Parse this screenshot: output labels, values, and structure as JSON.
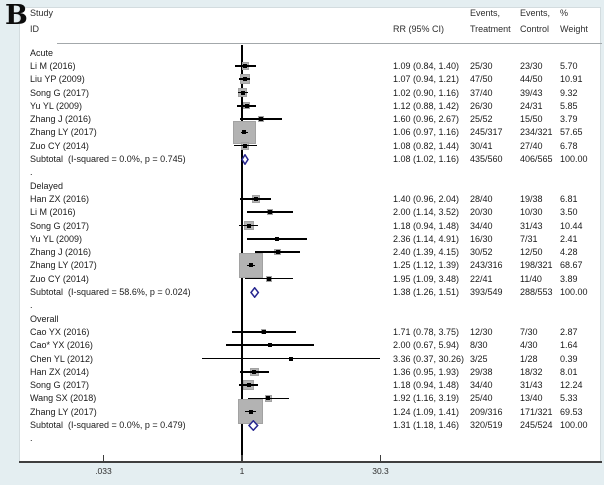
{
  "panel_label": "B",
  "header": {
    "study": "Study",
    "id": "ID",
    "rr": "RR (95% CI)",
    "events_treatment_line1": "Events,",
    "events_treatment_line2": "Treatment",
    "events_control_line1": "Events,",
    "events_control_line2": "Control",
    "weight_line1": "%",
    "weight_line2": "Weight"
  },
  "colors": {
    "background": "#e4eef1",
    "panel": "#ffffff",
    "weight_box": "#b3b3b3",
    "diamond_stroke": "#26268f",
    "marker": "#000000",
    "axis": "#3f3f3f"
  },
  "axis": {
    "scale": "log",
    "tick_labels": [
      ".033",
      "1",
      "30.3"
    ],
    "tick_values": [
      0.033,
      1,
      30.3
    ],
    "null_line_value": 1
  },
  "chart_data": {
    "type": "forest_plot",
    "effect_measure": "RR",
    "xlim": [
      0.033,
      30.3
    ],
    "groups": [
      {
        "name": "Acute",
        "studies": [
          {
            "id": "Li M (2016)",
            "rr": 1.09,
            "lo": 0.84,
            "hi": 1.4,
            "rr_text": "1.09 (0.84, 1.40)",
            "treatment": "25/30",
            "control": "23/30",
            "weight": 5.7,
            "weight_text": "5.70"
          },
          {
            "id": "Liu YP (2009)",
            "rr": 1.07,
            "lo": 0.94,
            "hi": 1.21,
            "rr_text": "1.07 (0.94, 1.21)",
            "treatment": "47/50",
            "control": "44/50",
            "weight": 10.91,
            "weight_text": "10.91"
          },
          {
            "id": "Song G (2017)",
            "rr": 1.02,
            "lo": 0.9,
            "hi": 1.16,
            "rr_text": "1.02 (0.90, 1.16)",
            "treatment": "37/40",
            "control": "39/43",
            "weight": 9.32,
            "weight_text": "9.32"
          },
          {
            "id": "Yu YL (2009)",
            "rr": 1.12,
            "lo": 0.88,
            "hi": 1.42,
            "rr_text": "1.12 (0.88, 1.42)",
            "treatment": "26/30",
            "control": "24/31",
            "weight": 5.85,
            "weight_text": "5.85"
          },
          {
            "id": "Zhang J (2016)",
            "rr": 1.6,
            "lo": 0.96,
            "hi": 2.67,
            "rr_text": "1.60 (0.96, 2.67)",
            "treatment": "25/52",
            "control": "15/50",
            "weight": 3.79,
            "weight_text": "3.79"
          },
          {
            "id": "Zhang LY (2017)",
            "rr": 1.06,
            "lo": 0.97,
            "hi": 1.16,
            "rr_text": "1.06 (0.97, 1.16)",
            "treatment": "245/317",
            "control": "234/321",
            "weight": 57.65,
            "weight_text": "57.65"
          },
          {
            "id": "Zuo CY (2014)",
            "rr": 1.08,
            "lo": 0.82,
            "hi": 1.44,
            "rr_text": "1.08 (0.82, 1.44)",
            "treatment": "30/41",
            "control": "27/40",
            "weight": 6.78,
            "weight_text": "6.78"
          }
        ],
        "subtotal": {
          "label": "Subtotal  (I-squared = 0.0%, p = 0.745)",
          "rr": 1.08,
          "lo": 1.02,
          "hi": 1.16,
          "rr_text": "1.08 (1.02, 1.16)",
          "treatment": "435/560",
          "control": "406/565",
          "weight_text": "100.00"
        }
      },
      {
        "name": "Delayed",
        "studies": [
          {
            "id": "Han ZX (2016)",
            "rr": 1.4,
            "lo": 0.96,
            "hi": 2.04,
            "rr_text": "1.40 (0.96, 2.04)",
            "treatment": "28/40",
            "control": "19/38",
            "weight": 6.81,
            "weight_text": "6.81"
          },
          {
            "id": "Li M (2016)",
            "rr": 2.0,
            "lo": 1.14,
            "hi": 3.52,
            "rr_text": "2.00 (1.14, 3.52)",
            "treatment": "20/30",
            "control": "10/30",
            "weight": 3.5,
            "weight_text": "3.50"
          },
          {
            "id": "Song G (2017)",
            "rr": 1.18,
            "lo": 0.94,
            "hi": 1.48,
            "rr_text": "1.18 (0.94, 1.48)",
            "treatment": "34/40",
            "control": "31/43",
            "weight": 10.44,
            "weight_text": "10.44"
          },
          {
            "id": "Yu YL (2009)",
            "rr": 2.36,
            "lo": 1.14,
            "hi": 4.91,
            "rr_text": "2.36 (1.14, 4.91)",
            "treatment": "16/30",
            "control": "7/31",
            "weight": 2.41,
            "weight_text": "2.41"
          },
          {
            "id": "Zhang J (2016)",
            "rr": 2.4,
            "lo": 1.39,
            "hi": 4.15,
            "rr_text": "2.40 (1.39, 4.15)",
            "treatment": "30/52",
            "control": "12/50",
            "weight": 4.28,
            "weight_text": "4.28"
          },
          {
            "id": "Zhang LY (2017)",
            "rr": 1.25,
            "lo": 1.12,
            "hi": 1.39,
            "rr_text": "1.25 (1.12, 1.39)",
            "treatment": "243/316",
            "control": "198/321",
            "weight": 68.67,
            "weight_text": "68.67"
          },
          {
            "id": "Zuo CY (2014)",
            "rr": 1.95,
            "lo": 1.09,
            "hi": 3.48,
            "rr_text": "1.95 (1.09, 3.48)",
            "treatment": "22/41",
            "control": "11/40",
            "weight": 3.89,
            "weight_text": "3.89"
          }
        ],
        "subtotal": {
          "label": "Subtotal  (I-squared = 58.6%, p = 0.024)",
          "rr": 1.38,
          "lo": 1.26,
          "hi": 1.51,
          "rr_text": "1.38 (1.26, 1.51)",
          "treatment": "393/549",
          "control": "288/553",
          "weight_text": "100.00"
        }
      },
      {
        "name": "Overall",
        "studies": [
          {
            "id": "Cao YX (2016)",
            "rr": 1.71,
            "lo": 0.78,
            "hi": 3.75,
            "rr_text": "1.71 (0.78, 3.75)",
            "treatment": "12/30",
            "control": "7/30",
            "weight": 2.87,
            "weight_text": "2.87"
          },
          {
            "id": "Cao* YX (2016)",
            "rr": 2.0,
            "lo": 0.67,
            "hi": 5.94,
            "rr_text": "2.00 (0.67, 5.94)",
            "treatment": "8/30",
            "control": "4/30",
            "weight": 1.64,
            "weight_text": "1.64"
          },
          {
            "id": "Chen YL (2012)",
            "rr": 3.36,
            "lo": 0.37,
            "hi": 30.26,
            "rr_text": "3.36 (0.37, 30.26)",
            "treatment": "3/25",
            "control": "1/28",
            "weight": 0.39,
            "weight_text": "0.39"
          },
          {
            "id": "Han ZX (2014)",
            "rr": 1.36,
            "lo": 0.95,
            "hi": 1.93,
            "rr_text": "1.36 (0.95, 1.93)",
            "treatment": "29/38",
            "control": "18/32",
            "weight": 8.01,
            "weight_text": "8.01"
          },
          {
            "id": "Song G (2017)",
            "rr": 1.18,
            "lo": 0.94,
            "hi": 1.48,
            "rr_text": "1.18 (0.94, 1.48)",
            "treatment": "34/40",
            "control": "31/43",
            "weight": 12.24,
            "weight_text": "12.24"
          },
          {
            "id": "Wang SX (2018)",
            "rr": 1.92,
            "lo": 1.16,
            "hi": 3.19,
            "rr_text": "1.92 (1.16, 3.19)",
            "treatment": "25/40",
            "control": "13/40",
            "weight": 5.33,
            "weight_text": "5.33"
          },
          {
            "id": "Zhang LY (2017)",
            "rr": 1.24,
            "lo": 1.09,
            "hi": 1.41,
            "rr_text": "1.24 (1.09, 1.41)",
            "treatment": "209/316",
            "control": "171/321",
            "weight": 69.53,
            "weight_text": "69.53"
          }
        ],
        "subtotal": {
          "label": "Subtotal  (I-squared = 0.0%, p = 0.479)",
          "rr": 1.31,
          "lo": 1.18,
          "hi": 1.46,
          "rr_text": "1.31 (1.18, 1.46)",
          "treatment": "320/519",
          "control": "245/524",
          "weight_text": "100.00"
        }
      }
    ]
  }
}
